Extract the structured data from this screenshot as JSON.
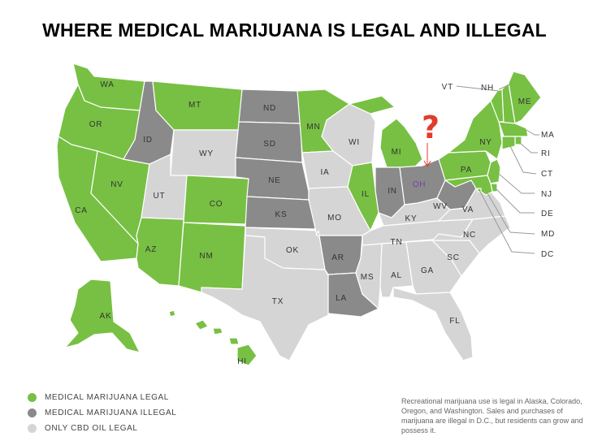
{
  "title": "WHERE MEDICAL MARIJUANA IS LEGAL AND ILLEGAL",
  "colors": {
    "legal": "#77c043",
    "illegal": "#8a8a8a",
    "cbd": "#d5d5d5",
    "border": "#ffffff",
    "callout_line": "#9a9a9a",
    "question_mark": "#e23b2c",
    "ohio_label": "#7a3fb0"
  },
  "legend": [
    {
      "label": "MEDICAL MARIJUANA LEGAL",
      "status": "legal"
    },
    {
      "label": "MEDICAL MARIJUANA ILLEGAL",
      "status": "illegal"
    },
    {
      "label": "ONLY CBD OIL LEGAL",
      "status": "cbd"
    }
  ],
  "note": "Recreational marijuana use is legal in Alaska, Colorado, Oregon, and Washington. Sales and purchases of marijuana are illegal in D.C., but residents can grow and possess it.",
  "annotation": {
    "symbol": "?",
    "target_state": "OH",
    "icon": "question-mark-arrow"
  },
  "states": [
    {
      "code": "WA",
      "status": "legal"
    },
    {
      "code": "OR",
      "status": "legal"
    },
    {
      "code": "CA",
      "status": "legal"
    },
    {
      "code": "NV",
      "status": "legal"
    },
    {
      "code": "ID",
      "status": "illegal"
    },
    {
      "code": "MT",
      "status": "legal"
    },
    {
      "code": "WY",
      "status": "cbd"
    },
    {
      "code": "UT",
      "status": "cbd"
    },
    {
      "code": "AZ",
      "status": "legal"
    },
    {
      "code": "CO",
      "status": "legal"
    },
    {
      "code": "NM",
      "status": "legal"
    },
    {
      "code": "ND",
      "status": "illegal"
    },
    {
      "code": "SD",
      "status": "illegal"
    },
    {
      "code": "NE",
      "status": "illegal"
    },
    {
      "code": "KS",
      "status": "illegal"
    },
    {
      "code": "OK",
      "status": "cbd"
    },
    {
      "code": "TX",
      "status": "cbd"
    },
    {
      "code": "MN",
      "status": "legal"
    },
    {
      "code": "IA",
      "status": "cbd"
    },
    {
      "code": "MO",
      "status": "cbd"
    },
    {
      "code": "AR",
      "status": "illegal"
    },
    {
      "code": "LA",
      "status": "illegal"
    },
    {
      "code": "WI",
      "status": "cbd"
    },
    {
      "code": "IL",
      "status": "legal"
    },
    {
      "code": "MI",
      "status": "legal"
    },
    {
      "code": "IN",
      "status": "illegal"
    },
    {
      "code": "OH",
      "status": "illegal"
    },
    {
      "code": "KY",
      "status": "cbd"
    },
    {
      "code": "TN",
      "status": "cbd"
    },
    {
      "code": "MS",
      "status": "cbd"
    },
    {
      "code": "AL",
      "status": "cbd"
    },
    {
      "code": "GA",
      "status": "cbd"
    },
    {
      "code": "FL",
      "status": "cbd"
    },
    {
      "code": "SC",
      "status": "cbd"
    },
    {
      "code": "NC",
      "status": "cbd"
    },
    {
      "code": "VA",
      "status": "cbd"
    },
    {
      "code": "WV",
      "status": "illegal"
    },
    {
      "code": "PA",
      "status": "legal"
    },
    {
      "code": "NY",
      "status": "legal"
    },
    {
      "code": "VT",
      "status": "legal"
    },
    {
      "code": "NH",
      "status": "legal"
    },
    {
      "code": "ME",
      "status": "legal"
    },
    {
      "code": "MA",
      "status": "legal"
    },
    {
      "code": "RI",
      "status": "legal"
    },
    {
      "code": "CT",
      "status": "legal"
    },
    {
      "code": "NJ",
      "status": "legal"
    },
    {
      "code": "DE",
      "status": "legal"
    },
    {
      "code": "MD",
      "status": "legal"
    },
    {
      "code": "DC",
      "status": "legal"
    },
    {
      "code": "AK",
      "status": "legal"
    },
    {
      "code": "HI",
      "status": "legal"
    }
  ]
}
